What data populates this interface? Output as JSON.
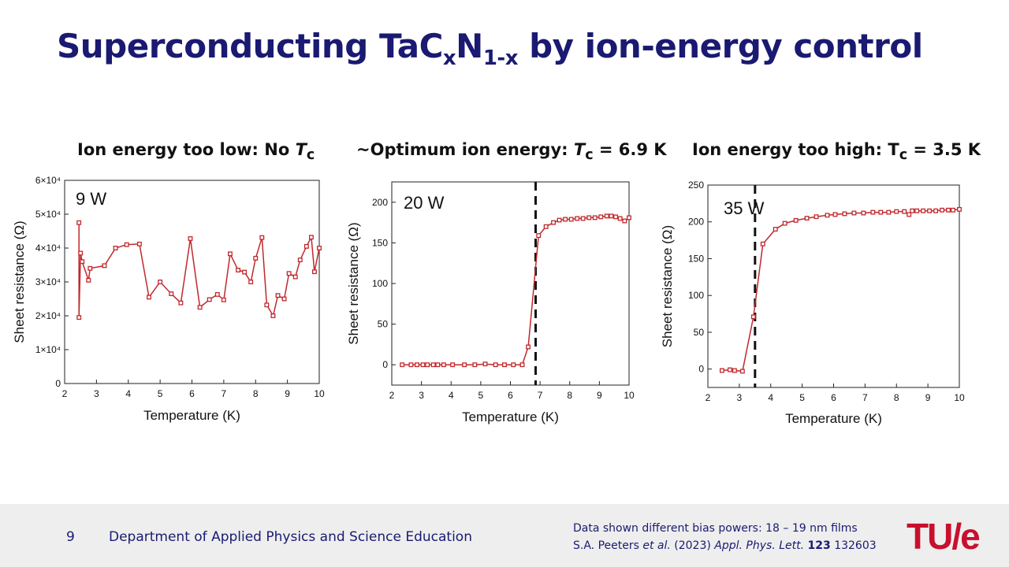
{
  "slide": {
    "title_main": "Superconducting TaC",
    "title_sub1": "x",
    "title_mid": "N",
    "title_sub2": "1-x",
    "title_end": " by ion-energy control"
  },
  "panels": [
    {
      "title_text": "Ion energy too low: No ",
      "title_italic": "T",
      "title_sub": "c",
      "title_rest": ""
    },
    {
      "title_text": "~Optimum ion energy: ",
      "title_italic": "T",
      "title_sub": "c",
      "title_rest": " = 6.9 K"
    },
    {
      "title_text": "Ion energy too high: T",
      "title_italic": "",
      "title_sub": "c",
      "title_rest": " = 3.5 K"
    }
  ],
  "footer": {
    "page_number": "9",
    "department": "Department of Applied Physics and Science Education",
    "note_line1": "Data shown different bias powers: 18 – 19 nm films",
    "note_line2_a": "S.A. Peeters ",
    "note_line2_etal": "et al.",
    "note_line2_b": " (2023) ",
    "note_line2_journal": "Appl. Phys. Lett.",
    "note_line2_space": " ",
    "note_line2_vol": "123",
    "note_line2_pages": " 132603",
    "logo": "TU/e"
  },
  "chart_data": [
    {
      "type": "line",
      "annotation": "9 W",
      "xlabel": "Temperature (K)",
      "ylabel": "Sheet resistance (Ω)",
      "xlim": [
        2,
        10
      ],
      "ylim": [
        0,
        60000
      ],
      "xticks": [
        2,
        3,
        4,
        5,
        6,
        7,
        8,
        9,
        10
      ],
      "yticks": [
        0,
        10000,
        20000,
        30000,
        40000,
        50000,
        60000
      ],
      "ytick_labels": [
        "0",
        "1×10⁴",
        "2×10⁴",
        "3×10⁴",
        "4×10⁴",
        "5×10⁴",
        "6×10⁴"
      ],
      "color": "#c0282d",
      "x": [
        2.45,
        2.45,
        2.5,
        2.55,
        2.75,
        2.8,
        3.25,
        3.6,
        3.95,
        4.35,
        4.65,
        5.0,
        5.35,
        5.65,
        5.95,
        6.25,
        6.55,
        6.8,
        7.0,
        7.2,
        7.45,
        7.65,
        7.85,
        8.0,
        8.2,
        8.35,
        8.55,
        8.7,
        8.9,
        9.05,
        9.25,
        9.4,
        9.6,
        9.75,
        9.85,
        10.0
      ],
      "y": [
        47500,
        19500,
        38500,
        36000,
        30500,
        34000,
        34800,
        40000,
        41000,
        41200,
        25500,
        30000,
        26500,
        23800,
        42800,
        22500,
        24800,
        26300,
        24700,
        38300,
        33500,
        32900,
        30000,
        37000,
        43100,
        23200,
        20000,
        26000,
        25000,
        32500,
        31500,
        36500,
        40500,
        43200,
        33000,
        40000
      ],
      "vline": null
    },
    {
      "type": "line",
      "annotation": "20 W",
      "xlabel": "Temperature (K)",
      "ylabel": "Sheet resistance (Ω)",
      "xlim": [
        2,
        10
      ],
      "ylim": [
        -25,
        225
      ],
      "xticks": [
        2,
        3,
        4,
        5,
        6,
        7,
        8,
        9,
        10
      ],
      "yticks": [
        0,
        50,
        100,
        150,
        200
      ],
      "ytick_labels": [
        "0",
        "50",
        "100",
        "150",
        "200"
      ],
      "color": "#c0282d",
      "x": [
        2.35,
        2.65,
        2.85,
        3.05,
        3.2,
        3.4,
        3.55,
        3.75,
        4.05,
        4.45,
        4.8,
        5.15,
        5.5,
        5.8,
        6.1,
        6.4,
        6.6,
        6.95,
        7.2,
        7.45,
        7.65,
        7.85,
        8.05,
        8.25,
        8.45,
        8.65,
        8.85,
        9.05,
        9.25,
        9.4,
        9.55,
        9.7,
        9.85,
        10.0
      ],
      "y": [
        0,
        0,
        0,
        0,
        0,
        0,
        0,
        0,
        0,
        0,
        0,
        1,
        0,
        0,
        0,
        0,
        22,
        159,
        170,
        175,
        178,
        179,
        179,
        180,
        180,
        181,
        181,
        182,
        183,
        183,
        182,
        180,
        177,
        181
      ],
      "vline": 6.85
    },
    {
      "type": "line",
      "annotation": "35 W",
      "xlabel": "Temperature (K)",
      "ylabel": "Sheet resistance (Ω)",
      "xlim": [
        2,
        10
      ],
      "ylim": [
        -25,
        250
      ],
      "xticks": [
        2,
        3,
        4,
        5,
        6,
        7,
        8,
        9,
        10
      ],
      "yticks": [
        0,
        50,
        100,
        150,
        200,
        250
      ],
      "ytick_labels": [
        "0",
        "50",
        "100",
        "150",
        "200",
        "250"
      ],
      "color": "#c0282d",
      "x": [
        2.45,
        2.7,
        2.85,
        3.1,
        3.45,
        3.75,
        4.15,
        4.45,
        4.8,
        5.15,
        5.45,
        5.8,
        6.05,
        6.35,
        6.65,
        6.95,
        7.25,
        7.5,
        7.75,
        8.0,
        8.25,
        8.4,
        8.5,
        8.65,
        8.85,
        9.05,
        9.25,
        9.45,
        9.65,
        9.8,
        10.0
      ],
      "y": [
        -2,
        -1,
        -2,
        -3,
        71,
        170,
        190,
        198,
        202,
        205,
        207,
        209,
        210,
        211,
        212,
        212,
        213,
        213,
        213,
        214,
        214,
        210,
        215,
        215,
        215,
        215,
        215,
        216,
        216,
        216,
        217
      ],
      "vline": 3.5
    }
  ]
}
